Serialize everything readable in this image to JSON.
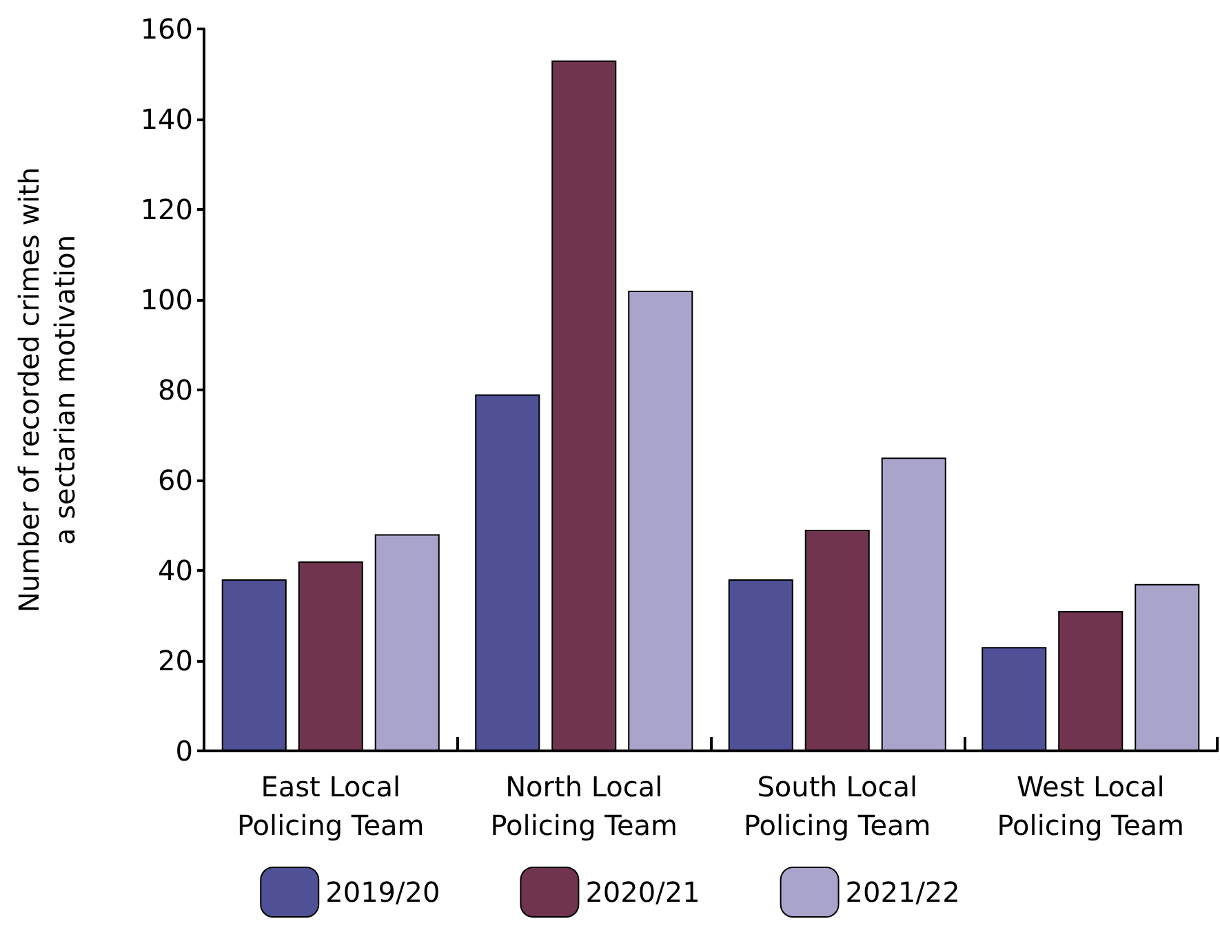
{
  "chart_data": {
    "type": "bar",
    "ylabel": "Number of recorded crimes with\na sectarian motivation",
    "categories": [
      "East Local\nPolicing Team",
      "North Local\nPolicing Team",
      "South Local\nPolicing Team",
      "West Local\nPolicing Team"
    ],
    "series": [
      {
        "name": "2019/20",
        "color": "#4f5096",
        "values": [
          38,
          79,
          38,
          23
        ]
      },
      {
        "name": "2020/21",
        "color": "#70344f",
        "values": [
          42,
          153,
          49,
          31
        ]
      },
      {
        "name": "2021/22",
        "color": "#a9a4cc",
        "values": [
          48,
          102,
          65,
          37
        ]
      }
    ],
    "ylim": [
      0,
      160
    ],
    "yticks": [
      0,
      20,
      40,
      60,
      80,
      100,
      120,
      140,
      160
    ],
    "grid": false,
    "legend": "bottom"
  }
}
